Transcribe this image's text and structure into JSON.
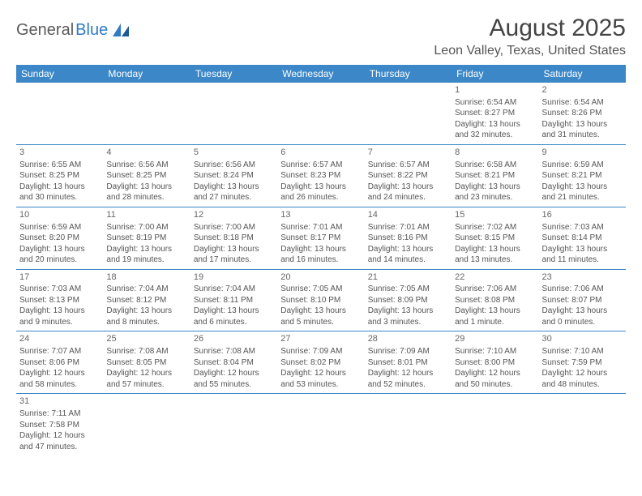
{
  "logo": {
    "text_dark": "General",
    "text_blue": "Blue"
  },
  "title": "August 2025",
  "location": "Leon Valley, Texas, United States",
  "colors": {
    "header_bg": "#3b87c8",
    "header_text": "#ffffff",
    "body_text": "#555555",
    "rule": "#3b87c8",
    "logo_blue": "#2f7bc4",
    "logo_dark": "#5a5a5a"
  },
  "weekdays": [
    "Sunday",
    "Monday",
    "Tuesday",
    "Wednesday",
    "Thursday",
    "Friday",
    "Saturday"
  ],
  "weeks": [
    [
      null,
      null,
      null,
      null,
      null,
      {
        "n": "1",
        "sr": "Sunrise: 6:54 AM",
        "ss": "Sunset: 8:27 PM",
        "d1": "Daylight: 13 hours",
        "d2": "and 32 minutes."
      },
      {
        "n": "2",
        "sr": "Sunrise: 6:54 AM",
        "ss": "Sunset: 8:26 PM",
        "d1": "Daylight: 13 hours",
        "d2": "and 31 minutes."
      }
    ],
    [
      {
        "n": "3",
        "sr": "Sunrise: 6:55 AM",
        "ss": "Sunset: 8:25 PM",
        "d1": "Daylight: 13 hours",
        "d2": "and 30 minutes."
      },
      {
        "n": "4",
        "sr": "Sunrise: 6:56 AM",
        "ss": "Sunset: 8:25 PM",
        "d1": "Daylight: 13 hours",
        "d2": "and 28 minutes."
      },
      {
        "n": "5",
        "sr": "Sunrise: 6:56 AM",
        "ss": "Sunset: 8:24 PM",
        "d1": "Daylight: 13 hours",
        "d2": "and 27 minutes."
      },
      {
        "n": "6",
        "sr": "Sunrise: 6:57 AM",
        "ss": "Sunset: 8:23 PM",
        "d1": "Daylight: 13 hours",
        "d2": "and 26 minutes."
      },
      {
        "n": "7",
        "sr": "Sunrise: 6:57 AM",
        "ss": "Sunset: 8:22 PM",
        "d1": "Daylight: 13 hours",
        "d2": "and 24 minutes."
      },
      {
        "n": "8",
        "sr": "Sunrise: 6:58 AM",
        "ss": "Sunset: 8:21 PM",
        "d1": "Daylight: 13 hours",
        "d2": "and 23 minutes."
      },
      {
        "n": "9",
        "sr": "Sunrise: 6:59 AM",
        "ss": "Sunset: 8:21 PM",
        "d1": "Daylight: 13 hours",
        "d2": "and 21 minutes."
      }
    ],
    [
      {
        "n": "10",
        "sr": "Sunrise: 6:59 AM",
        "ss": "Sunset: 8:20 PM",
        "d1": "Daylight: 13 hours",
        "d2": "and 20 minutes."
      },
      {
        "n": "11",
        "sr": "Sunrise: 7:00 AM",
        "ss": "Sunset: 8:19 PM",
        "d1": "Daylight: 13 hours",
        "d2": "and 19 minutes."
      },
      {
        "n": "12",
        "sr": "Sunrise: 7:00 AM",
        "ss": "Sunset: 8:18 PM",
        "d1": "Daylight: 13 hours",
        "d2": "and 17 minutes."
      },
      {
        "n": "13",
        "sr": "Sunrise: 7:01 AM",
        "ss": "Sunset: 8:17 PM",
        "d1": "Daylight: 13 hours",
        "d2": "and 16 minutes."
      },
      {
        "n": "14",
        "sr": "Sunrise: 7:01 AM",
        "ss": "Sunset: 8:16 PM",
        "d1": "Daylight: 13 hours",
        "d2": "and 14 minutes."
      },
      {
        "n": "15",
        "sr": "Sunrise: 7:02 AM",
        "ss": "Sunset: 8:15 PM",
        "d1": "Daylight: 13 hours",
        "d2": "and 13 minutes."
      },
      {
        "n": "16",
        "sr": "Sunrise: 7:03 AM",
        "ss": "Sunset: 8:14 PM",
        "d1": "Daylight: 13 hours",
        "d2": "and 11 minutes."
      }
    ],
    [
      {
        "n": "17",
        "sr": "Sunrise: 7:03 AM",
        "ss": "Sunset: 8:13 PM",
        "d1": "Daylight: 13 hours",
        "d2": "and 9 minutes."
      },
      {
        "n": "18",
        "sr": "Sunrise: 7:04 AM",
        "ss": "Sunset: 8:12 PM",
        "d1": "Daylight: 13 hours",
        "d2": "and 8 minutes."
      },
      {
        "n": "19",
        "sr": "Sunrise: 7:04 AM",
        "ss": "Sunset: 8:11 PM",
        "d1": "Daylight: 13 hours",
        "d2": "and 6 minutes."
      },
      {
        "n": "20",
        "sr": "Sunrise: 7:05 AM",
        "ss": "Sunset: 8:10 PM",
        "d1": "Daylight: 13 hours",
        "d2": "and 5 minutes."
      },
      {
        "n": "21",
        "sr": "Sunrise: 7:05 AM",
        "ss": "Sunset: 8:09 PM",
        "d1": "Daylight: 13 hours",
        "d2": "and 3 minutes."
      },
      {
        "n": "22",
        "sr": "Sunrise: 7:06 AM",
        "ss": "Sunset: 8:08 PM",
        "d1": "Daylight: 13 hours",
        "d2": "and 1 minute."
      },
      {
        "n": "23",
        "sr": "Sunrise: 7:06 AM",
        "ss": "Sunset: 8:07 PM",
        "d1": "Daylight: 13 hours",
        "d2": "and 0 minutes."
      }
    ],
    [
      {
        "n": "24",
        "sr": "Sunrise: 7:07 AM",
        "ss": "Sunset: 8:06 PM",
        "d1": "Daylight: 12 hours",
        "d2": "and 58 minutes."
      },
      {
        "n": "25",
        "sr": "Sunrise: 7:08 AM",
        "ss": "Sunset: 8:05 PM",
        "d1": "Daylight: 12 hours",
        "d2": "and 57 minutes."
      },
      {
        "n": "26",
        "sr": "Sunrise: 7:08 AM",
        "ss": "Sunset: 8:04 PM",
        "d1": "Daylight: 12 hours",
        "d2": "and 55 minutes."
      },
      {
        "n": "27",
        "sr": "Sunrise: 7:09 AM",
        "ss": "Sunset: 8:02 PM",
        "d1": "Daylight: 12 hours",
        "d2": "and 53 minutes."
      },
      {
        "n": "28",
        "sr": "Sunrise: 7:09 AM",
        "ss": "Sunset: 8:01 PM",
        "d1": "Daylight: 12 hours",
        "d2": "and 52 minutes."
      },
      {
        "n": "29",
        "sr": "Sunrise: 7:10 AM",
        "ss": "Sunset: 8:00 PM",
        "d1": "Daylight: 12 hours",
        "d2": "and 50 minutes."
      },
      {
        "n": "30",
        "sr": "Sunrise: 7:10 AM",
        "ss": "Sunset: 7:59 PM",
        "d1": "Daylight: 12 hours",
        "d2": "and 48 minutes."
      }
    ],
    [
      {
        "n": "31",
        "sr": "Sunrise: 7:11 AM",
        "ss": "Sunset: 7:58 PM",
        "d1": "Daylight: 12 hours",
        "d2": "and 47 minutes."
      },
      null,
      null,
      null,
      null,
      null,
      null
    ]
  ]
}
